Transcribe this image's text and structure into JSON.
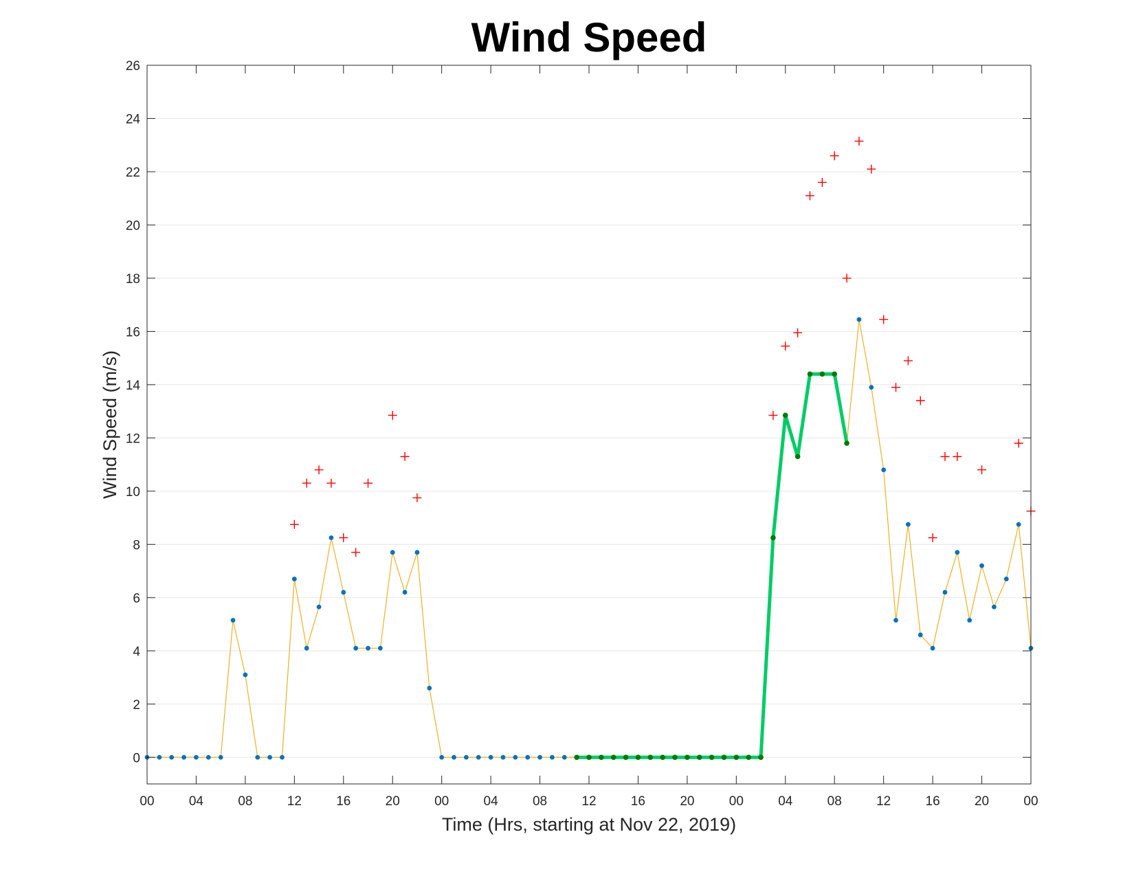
{
  "chart_data": {
    "type": "line",
    "title": "Wind Speed",
    "xlabel": "Time (Hrs, starting at Nov 22, 2019)",
    "ylabel": "Wind Speed (m/s)",
    "ylim": [
      -1,
      26
    ],
    "xlim_hours": [
      0,
      72
    ],
    "grid": "horizontal",
    "legend": "none",
    "yticks": [
      0,
      2,
      4,
      6,
      8,
      10,
      12,
      14,
      16,
      18,
      20,
      22,
      24,
      26
    ],
    "xticks": [
      {
        "hour": 0,
        "label": "00"
      },
      {
        "hour": 4,
        "label": "04"
      },
      {
        "hour": 8,
        "label": "08"
      },
      {
        "hour": 12,
        "label": "12"
      },
      {
        "hour": 16,
        "label": "16"
      },
      {
        "hour": 20,
        "label": "20"
      },
      {
        "hour": 24,
        "label": "00"
      },
      {
        "hour": 28,
        "label": "04"
      },
      {
        "hour": 32,
        "label": "08"
      },
      {
        "hour": 36,
        "label": "12"
      },
      {
        "hour": 40,
        "label": "16"
      },
      {
        "hour": 44,
        "label": "20"
      },
      {
        "hour": 48,
        "label": "00"
      },
      {
        "hour": 52,
        "label": "04"
      },
      {
        "hour": 56,
        "label": "08"
      },
      {
        "hour": 60,
        "label": "12"
      },
      {
        "hour": 64,
        "label": "16"
      },
      {
        "hour": 68,
        "label": "20"
      },
      {
        "hour": 72,
        "label": "00"
      }
    ],
    "series": [
      {
        "line_color": "#EDB120",
        "marker_color": "#0072BD",
        "x": [
          0,
          1,
          2,
          3,
          4,
          5,
          6,
          7,
          8,
          9,
          10,
          11,
          12,
          13,
          14,
          15,
          16,
          17,
          18,
          19,
          20,
          21,
          22,
          23,
          24,
          25,
          26,
          27,
          28,
          29,
          30,
          31,
          32,
          33,
          34,
          35,
          36,
          37,
          38,
          39,
          40,
          41,
          42,
          43,
          44,
          45,
          46,
          47,
          48,
          49,
          50,
          51,
          52,
          53,
          54,
          55,
          56,
          57,
          58,
          59,
          60,
          61,
          62,
          63,
          64,
          65,
          66,
          67,
          68,
          69,
          70,
          71,
          72
        ],
        "values": [
          0,
          0,
          0,
          0,
          0,
          0,
          0,
          5.15,
          3.1,
          0,
          0,
          0,
          6.7,
          4.1,
          5.65,
          8.25,
          6.2,
          4.1,
          4.1,
          4.1,
          7.7,
          6.2,
          7.7,
          2.6,
          0,
          0,
          0,
          0,
          0,
          0,
          0,
          0,
          0,
          0,
          0,
          0,
          0,
          0,
          0,
          0,
          0,
          0,
          0,
          0,
          0,
          0,
          0,
          0,
          0,
          0,
          0,
          8.25,
          12.85,
          11.3,
          14.4,
          14.4,
          14.4,
          11.8,
          16.45,
          13.9,
          10.8,
          5.15,
          8.75,
          4.6,
          4.1,
          6.2,
          7.7,
          5.15,
          7.2,
          5.65,
          6.7,
          8.75,
          4.1
        ]
      },
      {
        "line_color": "#00CC66",
        "marker_color": "#007A00",
        "x": [
          35,
          36,
          37,
          38,
          39,
          40,
          41,
          42,
          43,
          44,
          45,
          46,
          47,
          48,
          49,
          50,
          51,
          52,
          53,
          54,
          55,
          56,
          57
        ],
        "values": [
          0,
          0,
          0,
          0,
          0,
          0,
          0,
          0,
          0,
          0,
          0,
          0,
          0,
          0,
          0,
          0,
          8.25,
          12.85,
          11.3,
          14.4,
          14.4,
          14.4,
          11.8
        ]
      },
      {
        "marker": "+",
        "marker_color": "#FF0000",
        "x": [
          12,
          13,
          14,
          15,
          16,
          17,
          18,
          20,
          21,
          22,
          51,
          52,
          53,
          54,
          55,
          56,
          57,
          58,
          59,
          60,
          61,
          62,
          63,
          64,
          65,
          66,
          68,
          71,
          72
        ],
        "values": [
          8.75,
          10.3,
          10.8,
          10.3,
          8.25,
          7.7,
          10.3,
          12.85,
          11.3,
          9.75,
          12.85,
          15.45,
          15.95,
          21.1,
          21.6,
          22.6,
          18.0,
          23.15,
          22.1,
          16.45,
          13.9,
          14.9,
          13.4,
          8.25,
          11.3,
          11.3,
          10.8,
          11.8,
          9.25
        ]
      }
    ]
  }
}
